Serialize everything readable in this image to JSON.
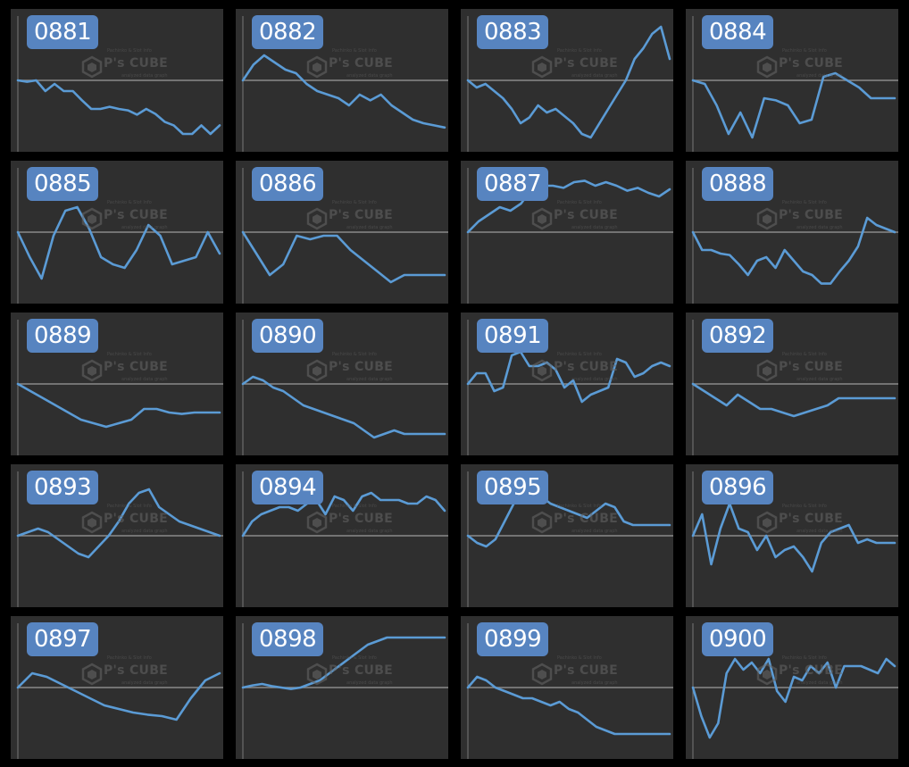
{
  "watermark": {
    "brand": "P's CUBE",
    "tagline": "Pachinko & Slot Info",
    "sub": "analyzed data graph"
  },
  "colors": {
    "line": "#5b9bd5",
    "baseline": "#8a8a8a",
    "panel": "#2f2f2f",
    "label_bg": "#5784c0",
    "background": "#000000"
  },
  "chart_data": [
    {
      "type": "line",
      "title": "0881",
      "baseline": 0,
      "ylim": [
        -100,
        100
      ],
      "x": [
        0,
        1,
        2,
        3,
        4,
        5,
        6,
        7,
        8,
        9,
        10,
        11,
        12,
        13,
        14,
        15,
        16,
        17,
        18,
        19,
        20,
        21,
        22
      ],
      "values": [
        0,
        -2,
        0,
        -15,
        -5,
        -15,
        -15,
        -28,
        -40,
        -40,
        -37,
        -40,
        -42,
        -48,
        -40,
        -47,
        -58,
        -63,
        -75,
        -75,
        -63,
        -75,
        -63
      ]
    },
    {
      "type": "line",
      "title": "0882",
      "baseline": 0,
      "ylim": [
        -100,
        100
      ],
      "x": [
        0,
        1,
        2,
        3,
        4,
        5,
        6,
        7,
        8,
        9,
        10,
        11,
        12,
        13,
        14,
        15,
        16,
        17,
        18,
        19
      ],
      "values": [
        0,
        22,
        35,
        25,
        15,
        10,
        -5,
        -15,
        -20,
        -25,
        -35,
        -20,
        -28,
        -20,
        -35,
        -45,
        -55,
        -60,
        -63,
        -66
      ]
    },
    {
      "type": "line",
      "title": "0883",
      "baseline": 0,
      "ylim": [
        -100,
        100
      ],
      "x": [
        0,
        1,
        2,
        3,
        4,
        5,
        6,
        7,
        8,
        9,
        10,
        11,
        12,
        13,
        14,
        15,
        16,
        17,
        18,
        19,
        20,
        21,
        22,
        23
      ],
      "values": [
        0,
        -10,
        -5,
        -15,
        -25,
        -40,
        -60,
        -52,
        -35,
        -45,
        -40,
        -50,
        -60,
        -75,
        -80,
        -60,
        -40,
        -20,
        0,
        30,
        45,
        65,
        75,
        30
      ]
    },
    {
      "type": "line",
      "title": "0884",
      "baseline": 0,
      "ylim": [
        -100,
        100
      ],
      "x": [
        0,
        1,
        2,
        3,
        4,
        5,
        6,
        7,
        8,
        9,
        10,
        11,
        12,
        13,
        14,
        15,
        16,
        17
      ],
      "values": [
        0,
        -5,
        -35,
        -75,
        -45,
        -80,
        -25,
        -28,
        -35,
        -60,
        -55,
        5,
        10,
        0,
        -10,
        -25,
        -25,
        -25
      ]
    },
    {
      "type": "line",
      "title": "0885",
      "baseline": 0,
      "ylim": [
        -100,
        100
      ],
      "x": [
        0,
        1,
        2,
        3,
        4,
        5,
        6,
        7,
        8,
        9,
        10,
        11,
        12,
        13,
        14,
        15,
        16,
        17
      ],
      "values": [
        0,
        -35,
        -65,
        -5,
        30,
        35,
        5,
        -35,
        -45,
        -50,
        -25,
        10,
        -5,
        -45,
        -40,
        -35,
        0,
        -30
      ]
    },
    {
      "type": "line",
      "title": "0886",
      "baseline": 0,
      "ylim": [
        -100,
        100
      ],
      "x": [
        0,
        1,
        2,
        3,
        4,
        5,
        6,
        7,
        8,
        9,
        10,
        11,
        12,
        13,
        14,
        15
      ],
      "values": [
        0,
        -30,
        -60,
        -45,
        -5,
        -10,
        -5,
        -5,
        -25,
        -40,
        -55,
        -70,
        -60,
        -60,
        -60,
        -60
      ]
    },
    {
      "type": "line",
      "title": "0887",
      "baseline": 0,
      "ylim": [
        -100,
        100
      ],
      "x": [
        0,
        1,
        2,
        3,
        4,
        5,
        6,
        7,
        8,
        9,
        10,
        11,
        12,
        13,
        14,
        15,
        16,
        17,
        18,
        19
      ],
      "values": [
        0,
        15,
        25,
        35,
        30,
        40,
        60,
        65,
        65,
        62,
        70,
        72,
        65,
        70,
        65,
        58,
        62,
        55,
        50,
        60
      ]
    },
    {
      "type": "line",
      "title": "0888",
      "baseline": 0,
      "ylim": [
        -100,
        100
      ],
      "x": [
        0,
        1,
        2,
        3,
        4,
        5,
        6,
        7,
        8,
        9,
        10,
        11,
        12,
        13,
        14,
        15,
        16,
        17,
        18,
        19,
        20,
        21,
        22
      ],
      "values": [
        0,
        -25,
        -25,
        -30,
        -32,
        -45,
        -60,
        -40,
        -35,
        -50,
        -25,
        -40,
        -55,
        -60,
        -72,
        -72,
        -55,
        -40,
        -20,
        20,
        10,
        5,
        0
      ]
    },
    {
      "type": "line",
      "title": "0889",
      "baseline": 0,
      "ylim": [
        -100,
        100
      ],
      "x": [
        0,
        1,
        2,
        3,
        4,
        5,
        6,
        7,
        8,
        9,
        10,
        11,
        12,
        13,
        14,
        15,
        16
      ],
      "values": [
        0,
        -10,
        -20,
        -30,
        -40,
        -50,
        -55,
        -60,
        -55,
        -50,
        -35,
        -35,
        -40,
        -42,
        -40,
        -40,
        -40
      ]
    },
    {
      "type": "line",
      "title": "0890",
      "baseline": 0,
      "ylim": [
        -100,
        100
      ],
      "x": [
        0,
        1,
        2,
        3,
        4,
        5,
        6,
        7,
        8,
        9,
        10,
        11,
        12,
        13,
        14,
        15,
        16,
        17,
        18,
        19,
        20
      ],
      "values": [
        0,
        10,
        5,
        -5,
        -10,
        -20,
        -30,
        -35,
        -40,
        -45,
        -50,
        -55,
        -65,
        -75,
        -70,
        -65,
        -70,
        -70,
        -70,
        -70,
        -70
      ]
    },
    {
      "type": "line",
      "title": "0891",
      "baseline": 0,
      "ylim": [
        -100,
        100
      ],
      "x": [
        0,
        1,
        2,
        3,
        4,
        5,
        6,
        7,
        8,
        9,
        10,
        11,
        12,
        13,
        14,
        15,
        16,
        17,
        18,
        19,
        20,
        21,
        22,
        23
      ],
      "values": [
        0,
        15,
        15,
        -10,
        -5,
        40,
        45,
        25,
        25,
        30,
        20,
        -5,
        5,
        -25,
        -15,
        -10,
        -5,
        35,
        30,
        10,
        15,
        25,
        30,
        25
      ]
    },
    {
      "type": "line",
      "title": "0892",
      "baseline": 0,
      "ylim": [
        -100,
        100
      ],
      "x": [
        0,
        1,
        2,
        3,
        4,
        5,
        6,
        7,
        8,
        9,
        10,
        11,
        12,
        13,
        14,
        15,
        16,
        17,
        18
      ],
      "values": [
        0,
        -10,
        -20,
        -30,
        -15,
        -25,
        -35,
        -35,
        -40,
        -45,
        -40,
        -35,
        -30,
        -20,
        -20,
        -20,
        -20,
        -20,
        -20
      ]
    },
    {
      "type": "line",
      "title": "0893",
      "baseline": 0,
      "ylim": [
        -100,
        100
      ],
      "x": [
        0,
        1,
        2,
        3,
        4,
        5,
        6,
        7,
        8,
        9,
        10,
        11,
        12,
        13,
        14,
        15,
        16,
        17,
        18,
        19,
        20
      ],
      "values": [
        0,
        5,
        10,
        5,
        -5,
        -15,
        -25,
        -30,
        -15,
        0,
        20,
        45,
        60,
        65,
        40,
        30,
        20,
        15,
        10,
        5,
        0
      ]
    },
    {
      "type": "line",
      "title": "0894",
      "baseline": 0,
      "ylim": [
        -100,
        100
      ],
      "x": [
        0,
        1,
        2,
        3,
        4,
        5,
        6,
        7,
        8,
        9,
        10,
        11,
        12,
        13,
        14,
        15,
        16,
        17,
        18,
        19,
        20,
        21,
        22
      ],
      "values": [
        0,
        20,
        30,
        35,
        40,
        40,
        35,
        45,
        50,
        30,
        55,
        50,
        35,
        55,
        60,
        50,
        50,
        50,
        45,
        45,
        55,
        50,
        35
      ]
    },
    {
      "type": "line",
      "title": "0895",
      "baseline": 0,
      "ylim": [
        -100,
        100
      ],
      "x": [
        0,
        1,
        2,
        3,
        4,
        5,
        6,
        7,
        8,
        9,
        10,
        11,
        12,
        13,
        14,
        15,
        16,
        17,
        18,
        19,
        20,
        21,
        22
      ],
      "values": [
        0,
        -10,
        -15,
        -5,
        20,
        45,
        75,
        65,
        55,
        45,
        40,
        35,
        30,
        25,
        35,
        45,
        40,
        20,
        15,
        15,
        15,
        15,
        15
      ]
    },
    {
      "type": "line",
      "title": "0896",
      "baseline": 0,
      "ylim": [
        -100,
        100
      ],
      "x": [
        0,
        1,
        2,
        3,
        4,
        5,
        6,
        7,
        8,
        9,
        10,
        11,
        12,
        13,
        14,
        15,
        16,
        17,
        18,
        19,
        20,
        21,
        22
      ],
      "values": [
        0,
        30,
        -40,
        10,
        45,
        10,
        5,
        -20,
        0,
        -30,
        -20,
        -15,
        -30,
        -50,
        -10,
        5,
        10,
        15,
        -10,
        -5,
        -10,
        -10,
        -10
      ]
    },
    {
      "type": "line",
      "title": "0897",
      "baseline": 0,
      "ylim": [
        -100,
        100
      ],
      "x": [
        0,
        1,
        2,
        3,
        4,
        5,
        6,
        7,
        8,
        9,
        10,
        11,
        12,
        13,
        14
      ],
      "values": [
        0,
        20,
        15,
        5,
        -5,
        -15,
        -25,
        -30,
        -35,
        -38,
        -40,
        -45,
        -15,
        10,
        20
      ]
    },
    {
      "type": "line",
      "title": "0898",
      "baseline": 0,
      "ylim": [
        -100,
        100
      ],
      "x": [
        0,
        1,
        2,
        3,
        4,
        5,
        6,
        7,
        8,
        9,
        10,
        11,
        12,
        13,
        14,
        15,
        16,
        17,
        18,
        19,
        20,
        21
      ],
      "values": [
        0,
        3,
        5,
        2,
        0,
        -2,
        0,
        5,
        10,
        20,
        30,
        40,
        50,
        60,
        65,
        70,
        70,
        70,
        70,
        70,
        70,
        70
      ]
    },
    {
      "type": "line",
      "title": "0899",
      "baseline": 0,
      "ylim": [
        -100,
        100
      ],
      "x": [
        0,
        1,
        2,
        3,
        4,
        5,
        6,
        7,
        8,
        9,
        10,
        11,
        12,
        13,
        14,
        15,
        16,
        17,
        18,
        19,
        20,
        21,
        22
      ],
      "values": [
        0,
        15,
        10,
        0,
        -5,
        -10,
        -15,
        -15,
        -20,
        -25,
        -20,
        -30,
        -35,
        -45,
        -55,
        -60,
        -65,
        -65,
        -65,
        -65,
        -65,
        -65,
        -65
      ]
    },
    {
      "type": "line",
      "title": "0900",
      "baseline": 0,
      "ylim": [
        -100,
        100
      ],
      "x": [
        0,
        1,
        2,
        3,
        4,
        5,
        6,
        7,
        8,
        9,
        10,
        11,
        12,
        13,
        14,
        15,
        16,
        17,
        18,
        19,
        20,
        21,
        22,
        23,
        24
      ],
      "values": [
        0,
        -40,
        -70,
        -50,
        20,
        40,
        25,
        35,
        20,
        40,
        -5,
        -20,
        15,
        10,
        30,
        20,
        35,
        0,
        30,
        30,
        30,
        25,
        20,
        40,
        30
      ]
    }
  ]
}
